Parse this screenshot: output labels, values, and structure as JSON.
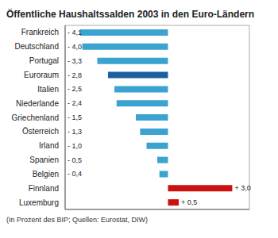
{
  "chart_data": {
    "type": "bar",
    "orientation": "horizontal",
    "title": "Öffentliche Haushaltssalden 2003 in den Euro-Ländern",
    "annotations": [
      "(In Prozent des BIP; Quellen: Eurostat, DIW)"
    ],
    "categories": [
      "Frankreich",
      "Deutschland",
      "Portugal",
      "Euroraum",
      "Italien",
      "Niederlande",
      "Griechenland",
      "Österreich",
      "Irland",
      "Spanien",
      "Belgien",
      "Finnland",
      "Luxemburg"
    ],
    "values": [
      -4.1,
      -4.0,
      -3.3,
      -2.8,
      -2.5,
      -2.4,
      -1.5,
      -1.3,
      -1.0,
      -0.5,
      -0.4,
      3.0,
      0.5
    ],
    "value_labels": [
      "- 4,1",
      "- 4,0",
      "- 3,3",
      "- 2,8",
      "- 2,5",
      "- 2,4",
      "- 1,5",
      "- 1,3",
      "- 1,0",
      "- 0,5",
      "- 0,4",
      "+ 3,0",
      "+ 0,5"
    ],
    "colors": [
      "#3BA3D0",
      "#3BA3D0",
      "#3BA3D0",
      "#1A5FA0",
      "#3BA3D0",
      "#3BA3D0",
      "#3BA3D0",
      "#3BA3D0",
      "#3BA3D0",
      "#3BA3D0",
      "#3BA3D0",
      "#CC1111",
      "#CC1111"
    ],
    "xlim": [
      -4.8,
      3.8
    ],
    "grid": false,
    "data_labels": true,
    "tick_labels": "y"
  }
}
